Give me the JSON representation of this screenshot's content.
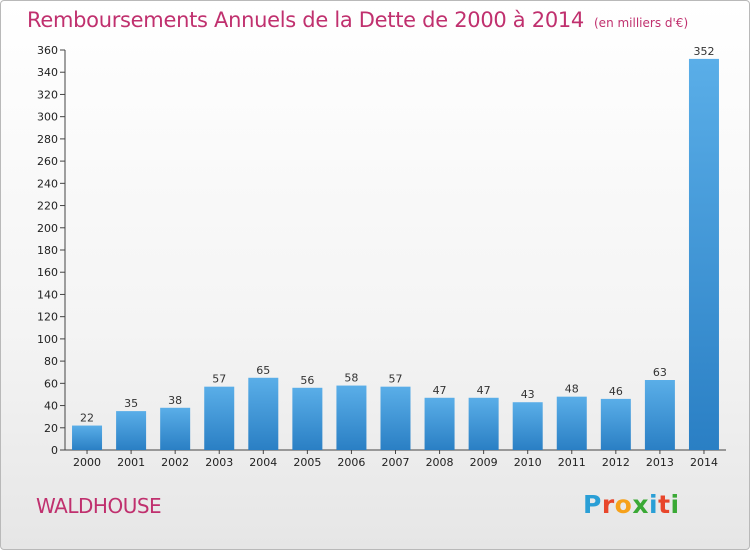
{
  "header": {
    "title": "Remboursements Annuels de la Dette de 2000 à 2014",
    "subtitle": "(en milliers d'€)"
  },
  "footer": {
    "place": "WALDHOUSE",
    "logo_letters": [
      "P",
      "r",
      "o",
      "x",
      "i",
      "t",
      "i"
    ],
    "logo_colors": [
      "#2a9fd6",
      "#e8462b",
      "#f6a11a",
      "#3aa935",
      "#2a9fd6",
      "#e8462b",
      "#3aa935"
    ]
  },
  "chart_data": {
    "type": "bar",
    "title": "Remboursements Annuels de la Dette de 2000 à 2014",
    "subtitle": "(en milliers d'€)",
    "categories": [
      "2000",
      "2001",
      "2002",
      "2003",
      "2004",
      "2005",
      "2006",
      "2007",
      "2008",
      "2009",
      "2010",
      "2011",
      "2012",
      "2013",
      "2014"
    ],
    "values": [
      22,
      35,
      38,
      57,
      65,
      56,
      58,
      57,
      47,
      47,
      43,
      48,
      46,
      63,
      352
    ],
    "ylim": [
      0,
      360
    ],
    "yticks": [
      0,
      20,
      40,
      60,
      80,
      100,
      120,
      140,
      160,
      180,
      200,
      220,
      240,
      260,
      280,
      300,
      320,
      340,
      360
    ],
    "grid": false,
    "bar_color": "#3f97da"
  }
}
